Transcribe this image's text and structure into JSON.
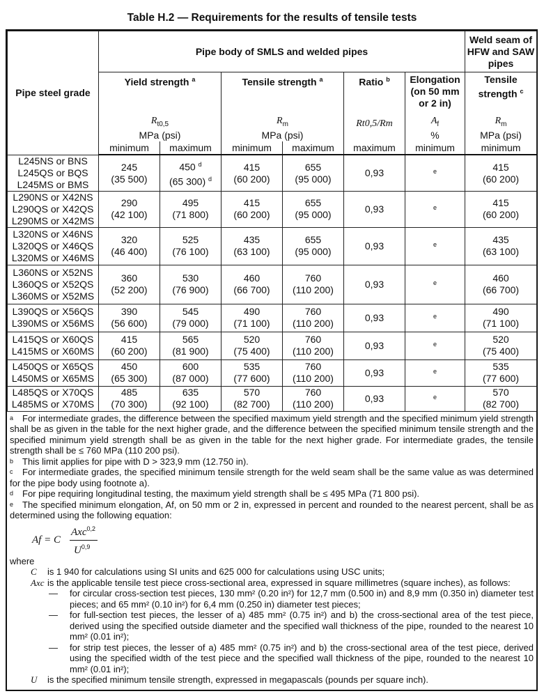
{
  "title": "Table H.2 — Requirements for the results of tensile tests",
  "header": {
    "grade": "Pipe steel grade",
    "pipe_body": "Pipe body of SMLS and welded pipes",
    "weld_seam": "Weld seam of HFW and SAW pipes",
    "yield": "Yield strength",
    "yield_note": "a",
    "tensile": "Tensile strength",
    "tensile_note": "a",
    "ratio": "Ratio",
    "ratio_note": "b",
    "elong": "Elongation (on 50 mm or 2 in)",
    "weld_tensile": "Tensile strength",
    "weld_tensile_note": "c",
    "sym_yield": "R",
    "sym_yield_sub": "t0,5",
    "sym_rm": "R",
    "sym_rm_sub": "m",
    "sym_ratio": "Rt0,5/Rm",
    "sym_af": "A",
    "sym_af_sub": "f",
    "unit_mpa": "MPa (psi)",
    "unit_pct": "%",
    "minimum": "minimum",
    "maximum": "maximum"
  },
  "rows": [
    {
      "grade": [
        "L245NS or BNS",
        "L245QS or BQS",
        "L245MS or BMS"
      ],
      "ys_min": "245",
      "ys_min_psi": "(35 500)",
      "ys_max": "450",
      "ys_max_note": "d",
      "ys_max_psi": "(65 300)",
      "ys_max_psi_note": "d",
      "ts_min": "415",
      "ts_min_psi": "(60 200)",
      "ts_max": "655",
      "ts_max_psi": "(95 000)",
      "ratio": "0,93",
      "elong": "e",
      "weld": "415",
      "weld_psi": "(60 200)"
    },
    {
      "grade": [
        "L290NS or X42NS",
        "L290QS or X42QS",
        "L290MS or X42MS"
      ],
      "ys_min": "290",
      "ys_min_psi": "(42 100)",
      "ys_max": "495",
      "ys_max_psi": "(71 800)",
      "ts_min": "415",
      "ts_min_psi": "(60 200)",
      "ts_max": "655",
      "ts_max_psi": "(95 000)",
      "ratio": "0,93",
      "elong": "e",
      "weld": "415",
      "weld_psi": "(60 200)"
    },
    {
      "grade": [
        "L320NS or X46NS",
        "L320QS or X46QS",
        "L320MS or X46MS"
      ],
      "ys_min": "320",
      "ys_min_psi": "(46 400)",
      "ys_max": "525",
      "ys_max_psi": "(76 100)",
      "ts_min": "435",
      "ts_min_psi": "(63 100)",
      "ts_max": "655",
      "ts_max_psi": "(95 000)",
      "ratio": "0,93",
      "elong": "e",
      "weld": "435",
      "weld_psi": "(63 100)"
    },
    {
      "grade": [
        "L360NS or X52NS",
        "L360QS or X52QS",
        "L360MS or X52MS"
      ],
      "ys_min": "360",
      "ys_min_psi": "(52 200)",
      "ys_max": "530",
      "ys_max_psi": "(76 900)",
      "ts_min": "460",
      "ts_min_psi": "(66 700)",
      "ts_max": "760",
      "ts_max_psi": "(110 200)",
      "ratio": "0,93",
      "elong": "e",
      "weld": "460",
      "weld_psi": "(66 700)"
    },
    {
      "grade": [
        "L390QS or X56QS",
        "L390MS or X56MS"
      ],
      "ys_min": "390",
      "ys_min_psi": "(56 600)",
      "ys_max": "545",
      "ys_max_psi": "(79 000)",
      "ts_min": "490",
      "ts_min_psi": "(71 100)",
      "ts_max": "760",
      "ts_max_psi": "(110 200)",
      "ratio": "0,93",
      "elong": "e",
      "weld": "490",
      "weld_psi": "(71 100)"
    },
    {
      "grade": [
        "L415QS or X60QS",
        "L415MS or X60MS"
      ],
      "ys_min": "415",
      "ys_min_psi": "(60 200)",
      "ys_max": "565",
      "ys_max_psi": "(81 900)",
      "ts_min": "520",
      "ts_min_psi": "(75 400)",
      "ts_max": "760",
      "ts_max_psi": "(110 200)",
      "ratio": "0,93",
      "elong": "e",
      "weld": "520",
      "weld_psi": "(75 400)"
    },
    {
      "grade": [
        "L450QS or X65QS",
        "L450MS or X65MS"
      ],
      "ys_min": "450",
      "ys_min_psi": "(65 300)",
      "ys_max": "600",
      "ys_max_psi": "(87 000)",
      "ts_min": "535",
      "ts_min_psi": "(77 600)",
      "ts_max": "760",
      "ts_max_psi": "(110 200)",
      "ratio": "0,93",
      "elong": "e",
      "weld": "535",
      "weld_psi": "(77 600)"
    },
    {
      "grade": [
        "L485QS or X70QS",
        "L485MS or X70MS"
      ],
      "ys_min": "485",
      "ys_min_psi": "(70 300)",
      "ys_max": "635",
      "ys_max_psi": "(92 100)",
      "ts_min": "570",
      "ts_min_psi": "(82 700)",
      "ts_max": "760",
      "ts_max_psi": "(110 200)",
      "ratio": "0,93",
      "elong": "e",
      "weld": "570",
      "weld_psi": "(82 700)"
    }
  ],
  "footnotes": {
    "a": {
      "label": "a",
      "text": "For intermediate grades, the difference between the specified maximum yield strength and the specified minimum yield strength shall be as given in the table for the next higher grade, and the difference between the specified minimum tensile strength and the specified minimum yield strength shall be as given in the table for the next higher grade. For intermediate grades, the tensile strength shall be ≤ 760 MPa (110 200 psi)."
    },
    "b": {
      "label": "b",
      "text": "This limit applies for pipe with D > 323,9 mm (12.750 in)."
    },
    "c": {
      "label": "c",
      "text": "For intermediate grades, the specified minimum tensile strength for the weld seam shall be the same value as was determined for the pipe body using footnote a)."
    },
    "d": {
      "label": "d",
      "text": "For pipe requiring longitudinal testing, the maximum yield strength shall be ≤ 495 MPa (71 800 psi)."
    },
    "e": {
      "label": "e",
      "text": "The specified minimum elongation, Af, on 50 mm or 2 in, expressed in percent and rounded to the nearest percent, shall be as determined using the following equation:"
    }
  },
  "equation": {
    "lhs": "Af = C",
    "num": "Axc",
    "num_exp": "0,2",
    "den": "U",
    "den_exp": "0,9"
  },
  "where": {
    "label": "where",
    "c_sym": "C",
    "c_text": "is 1 940 for calculations using SI units and 625 000 for calculations using USC units;",
    "a_sym": "Axc",
    "a_text": "is the applicable tensile test piece cross-sectional area, expressed in square millimetres (square inches), as follows:",
    "items": [
      "for circular cross-section test pieces, 130 mm² (0.20 in²) for 12,7 mm (0.500 in) and 8,9 mm (0.350 in) diameter test pieces; and 65 mm² (0.10 in²) for 6,4 mm (0.250 in) diameter test pieces;",
      "for full-section test pieces, the lesser of a) 485 mm² (0.75 in²) and b) the cross-sectional area of the test piece, derived using the specified outside diameter and the specified wall thickness of the pipe, rounded to the nearest 10 mm² (0.01 in²);",
      "for strip test pieces, the lesser of a) 485 mm² (0.75 in²) and b) the cross-sectional area of the test piece, derived using the specified width of the test piece and the specified wall thickness of the pipe, rounded to the nearest 10 mm² (0.01 in²);"
    ],
    "dash": "—",
    "u_sym": "U",
    "u_text": "is the specified minimum tensile strength, expressed in megapascals (pounds per square inch)."
  }
}
